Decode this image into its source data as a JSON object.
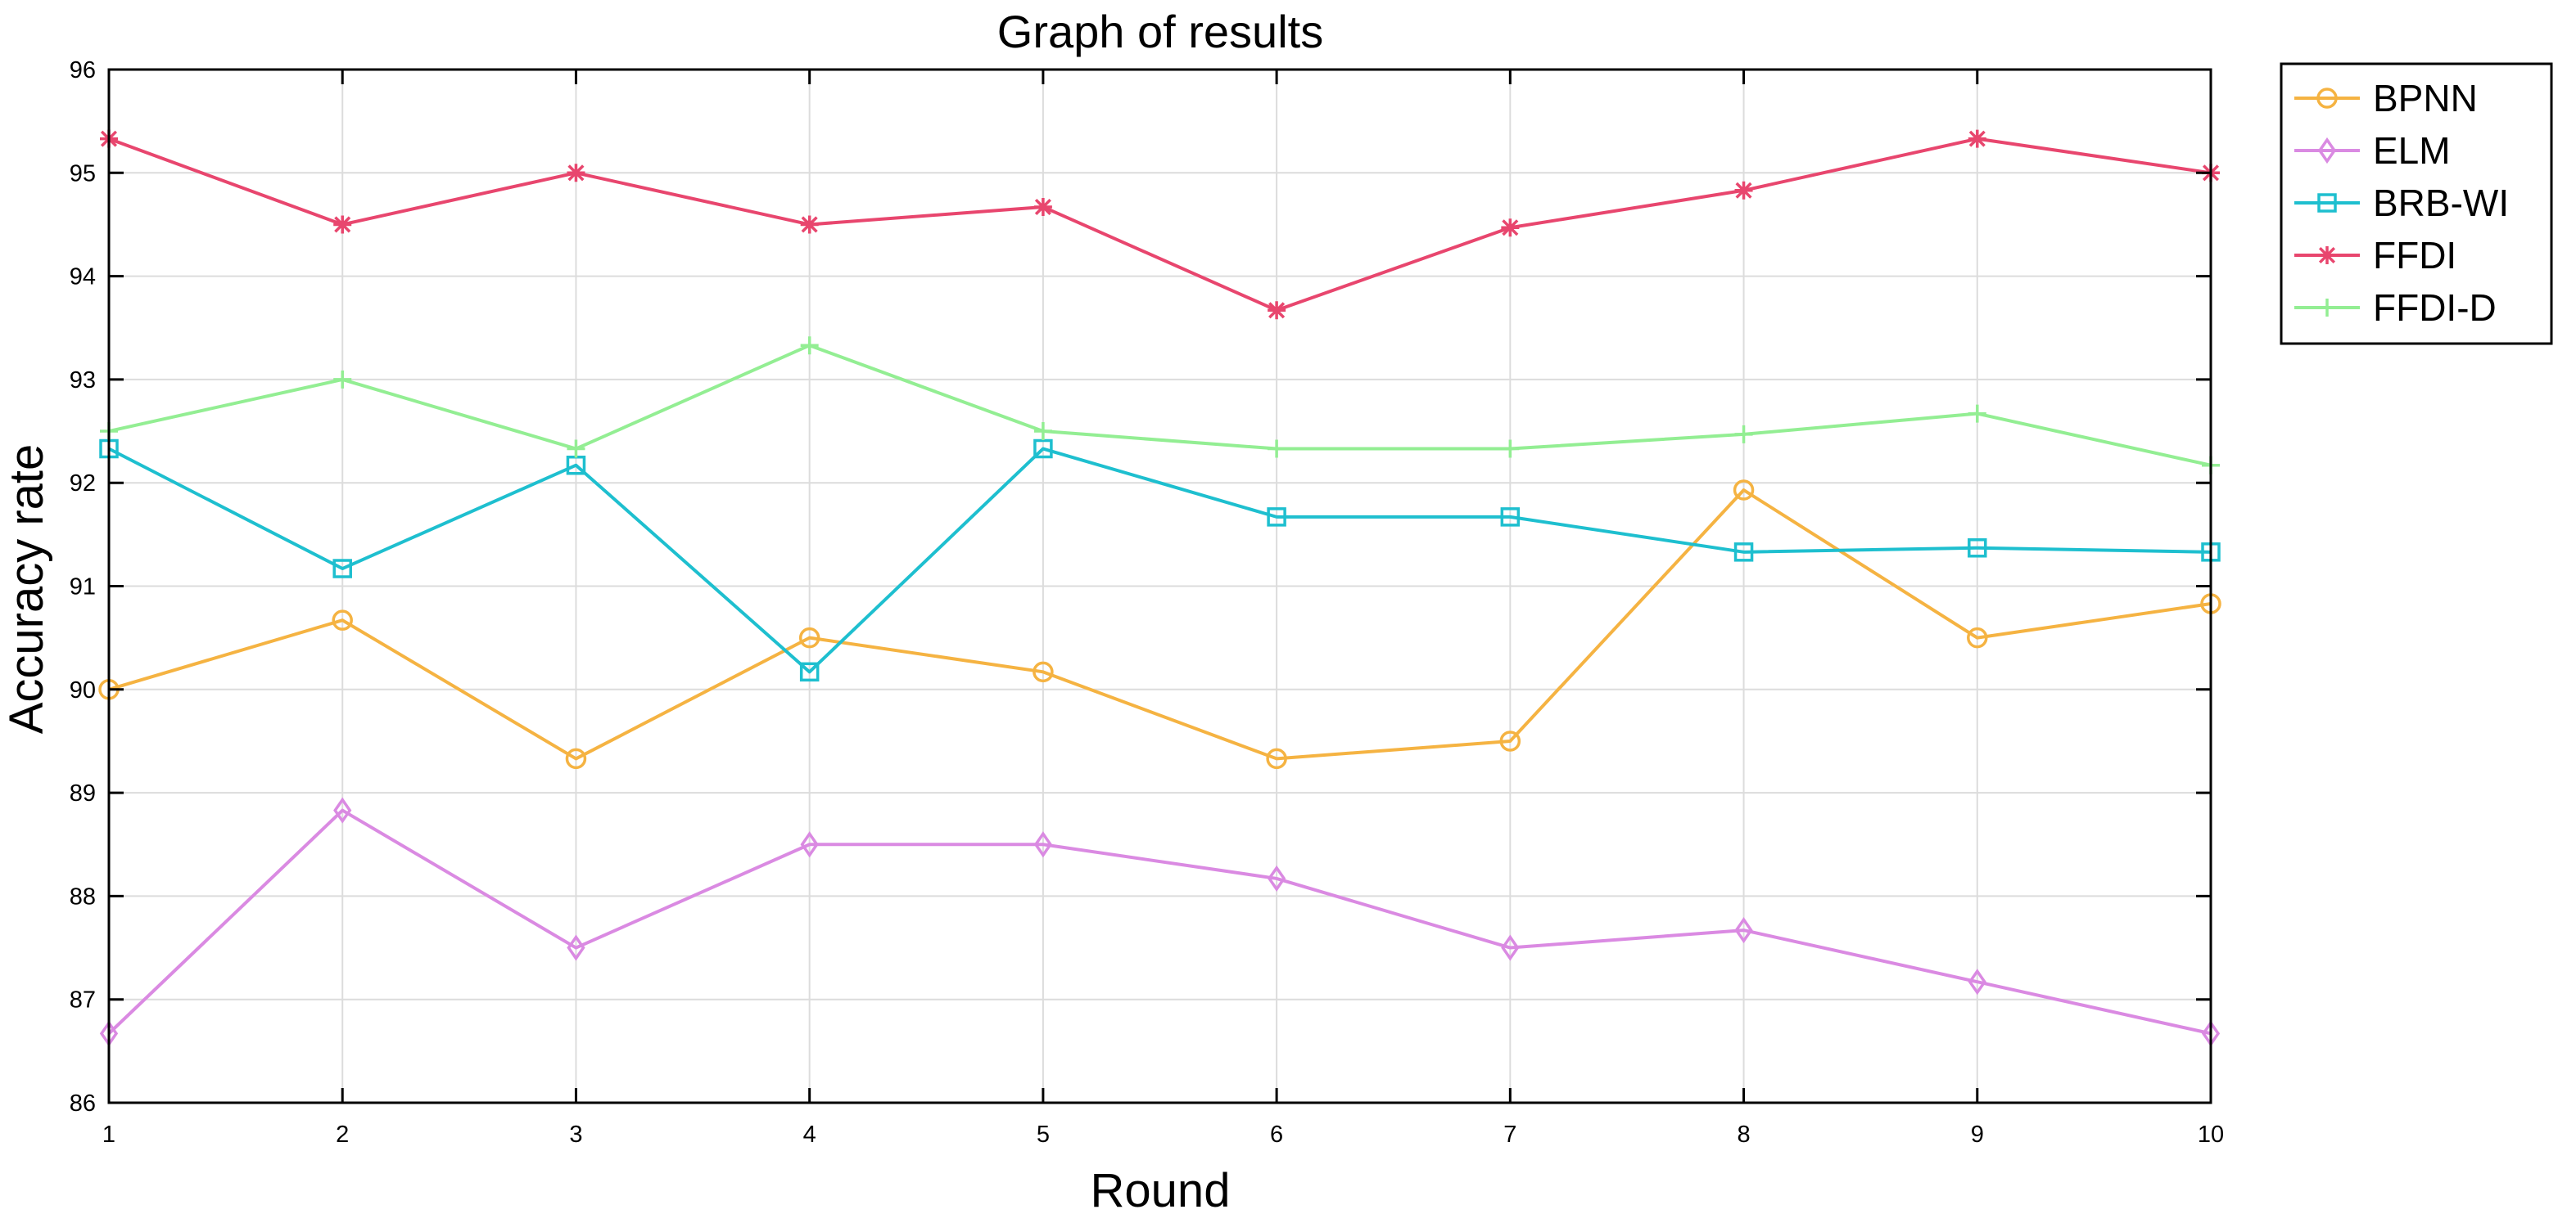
{
  "chart_data": {
    "type": "line",
    "title": "Graph of results",
    "xlabel": "Round",
    "ylabel": "Accuracy rate",
    "x": [
      1,
      2,
      3,
      4,
      5,
      6,
      7,
      8,
      9,
      10
    ],
    "xlim": [
      1,
      10
    ],
    "ylim": [
      86,
      96
    ],
    "xticks": [
      1,
      2,
      3,
      4,
      5,
      6,
      7,
      8,
      9,
      10
    ],
    "yticks": [
      86,
      87,
      88,
      89,
      90,
      91,
      92,
      93,
      94,
      95,
      96
    ],
    "grid": true,
    "legend_position": "outside-top-right",
    "series": [
      {
        "name": "BPNN",
        "color": "#F5B342",
        "marker": "circle",
        "values": [
          90.0,
          90.67,
          89.33,
          90.5,
          90.17,
          89.33,
          89.5,
          91.93,
          90.5,
          90.83
        ]
      },
      {
        "name": "ELM",
        "color": "#DA8AE2",
        "marker": "diamond",
        "values": [
          86.67,
          88.83,
          87.5,
          88.5,
          88.5,
          88.17,
          87.5,
          87.67,
          87.17,
          86.67
        ]
      },
      {
        "name": "BRB-WI",
        "color": "#1EBFCF",
        "marker": "square",
        "values": [
          92.33,
          91.17,
          92.17,
          90.17,
          92.33,
          91.67,
          91.67,
          91.33,
          91.37,
          91.33
        ]
      },
      {
        "name": "FFDI",
        "color": "#E8466E",
        "marker": "asterisk",
        "values": [
          95.33,
          94.5,
          95.0,
          94.5,
          94.67,
          93.67,
          94.47,
          94.83,
          95.33,
          95.0
        ]
      },
      {
        "name": "FFDI-D",
        "color": "#93EE93",
        "marker": "plus",
        "values": [
          92.5,
          93.0,
          92.33,
          93.33,
          92.5,
          92.33,
          92.33,
          92.47,
          92.67,
          92.17
        ]
      }
    ]
  }
}
